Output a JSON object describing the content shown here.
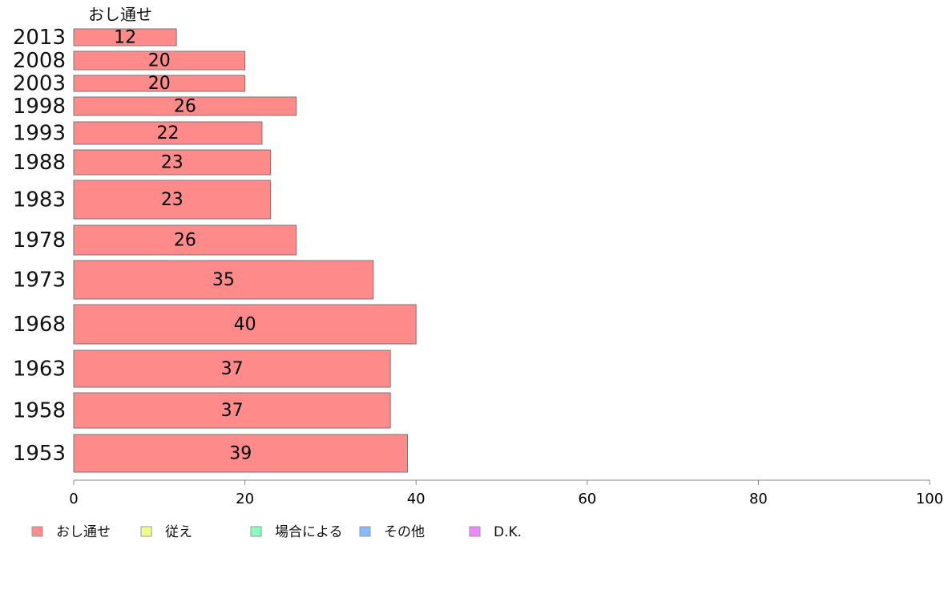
{
  "chart_data": {
    "type": "bar",
    "orientation": "horizontal",
    "stacked": true,
    "series_header": "おし通せ",
    "categories": [
      "2013",
      "2008",
      "2003",
      "1998",
      "1993",
      "1988",
      "1983",
      "1978",
      "1973",
      "1968",
      "1963",
      "1958",
      "1953"
    ],
    "series": [
      {
        "name": "おし通せ",
        "color": "#ff8a8a",
        "values": [
          12,
          20,
          20,
          26,
          22,
          23,
          23,
          26,
          35,
          40,
          37,
          37,
          39
        ]
      }
    ],
    "legend": [
      {
        "name": "おし通せ",
        "color": "#ff8a8a"
      },
      {
        "name": "従え",
        "color": "#eeff88"
      },
      {
        "name": "場合による",
        "color": "#88ffbb"
      },
      {
        "name": "その他",
        "color": "#88bbff"
      },
      {
        "name": "D.K.",
        "color": "#ee88ff"
      }
    ],
    "legend_position": "bottom-left",
    "xlim": [
      0,
      100
    ],
    "xticks": [
      0,
      20,
      40,
      60,
      80,
      100
    ],
    "grid": false
  }
}
